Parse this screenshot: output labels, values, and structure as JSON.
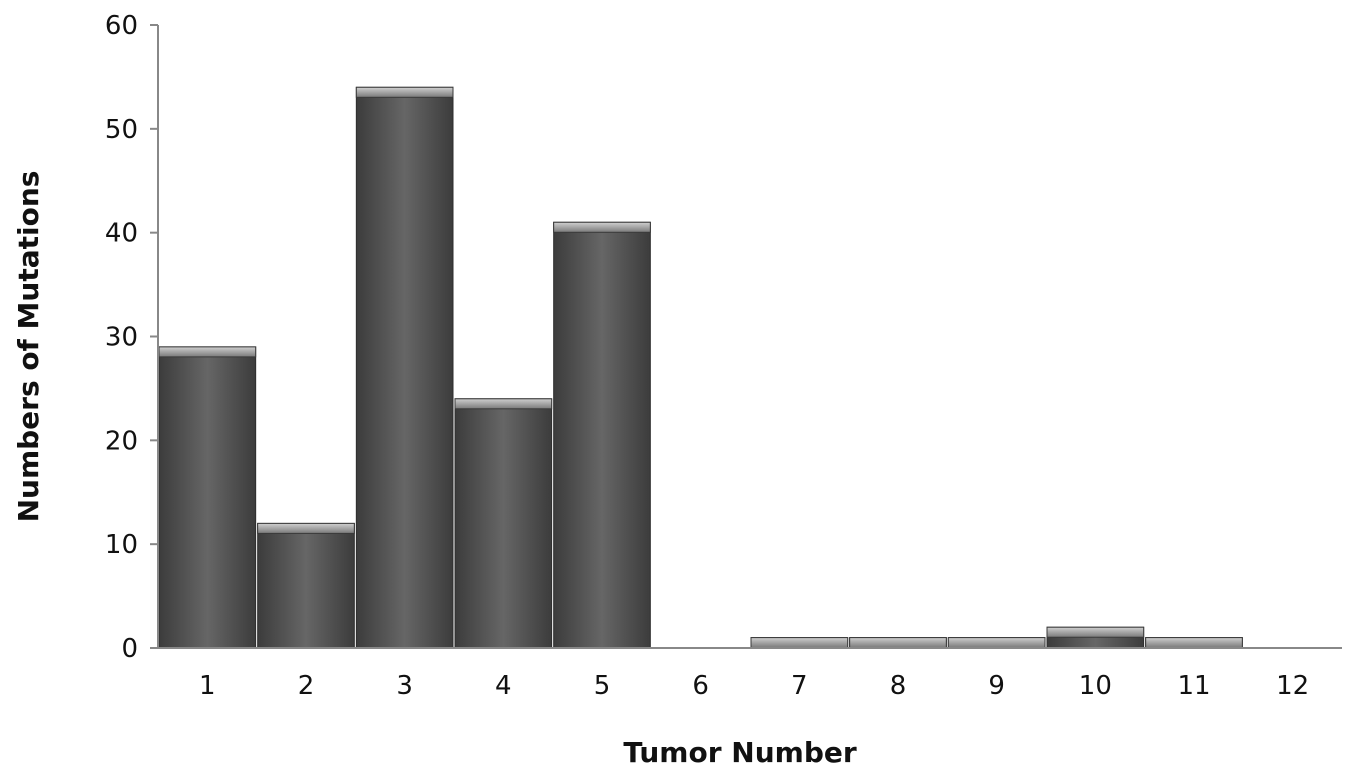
{
  "chart_data": {
    "type": "bar",
    "title": "",
    "xlabel": "Tumor Number",
    "ylabel": "Numbers of Mutations",
    "categories": [
      "1",
      "2",
      "3",
      "4",
      "5",
      "6",
      "7",
      "8",
      "9",
      "10",
      "11",
      "12"
    ],
    "values": [
      29,
      12,
      54,
      24,
      41,
      0,
      1,
      1,
      1,
      2,
      1,
      0
    ],
    "ylim": [
      0,
      60
    ],
    "yticks": [
      0,
      10,
      20,
      30,
      40,
      50,
      60
    ],
    "grid": false,
    "legend": "none",
    "colors": {
      "bar_fill": "#5b5b5b",
      "bar_dark": "#3f3f3f",
      "bar_top": "#9a9a9a",
      "axis": "#888888"
    }
  }
}
